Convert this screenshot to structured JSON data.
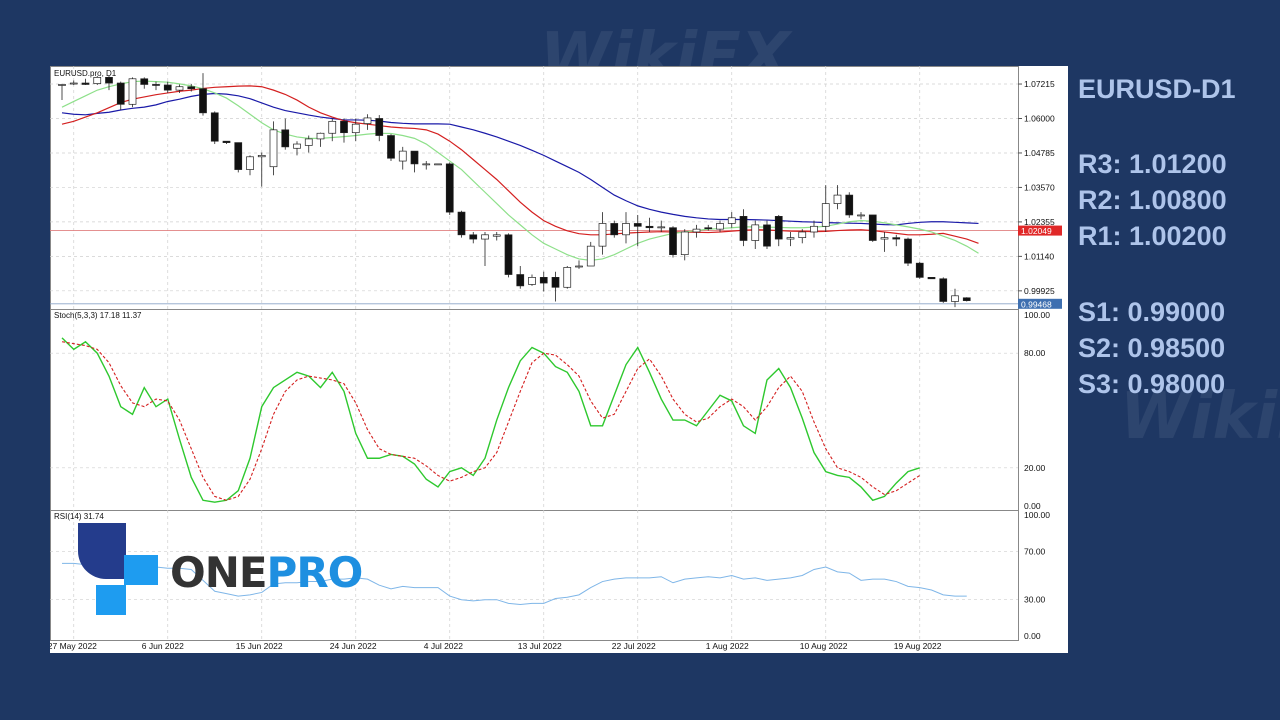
{
  "symbol_title": "EURUSD-D1",
  "levels": {
    "resistance": [
      "R3: 1.01200",
      "R2: 1.00800",
      "R1: 1.00200"
    ],
    "support": [
      "S1: 0.99000",
      "S2: 0.98500",
      "S3: 0.98000"
    ]
  },
  "logo": {
    "part1": "ONE",
    "part2": "PRO"
  },
  "watermark": "WikiFX",
  "chart_data": {
    "type": "candlestick",
    "symbol_label": "EURUSD.pro, D1",
    "price_ticks": [
      "1.07215",
      "1.06000",
      "1.04785",
      "1.03570",
      "1.02355",
      "1.01140",
      "0.99925"
    ],
    "price_range": [
      0.9932,
      1.0778
    ],
    "current_price_label": "1.02049",
    "current_price": 1.02049,
    "bid_price_label": "0.99468",
    "bid_price": 0.99468,
    "date_labels": [
      "27 May 2022",
      "6 Jun 2022",
      "15 Jun 2022",
      "24 Jun 2022",
      "4 Jul 2022",
      "13 Jul 2022",
      "22 Jul 2022",
      "1 Aug 2022",
      "10 Aug 2022",
      "19 Aug 2022"
    ],
    "date_label_index": [
      1,
      9,
      17,
      25,
      33,
      41,
      49,
      57,
      65,
      73
    ],
    "candles": [
      {
        "o": 1.0718,
        "h": 1.0722,
        "l": 1.0665,
        "c": 1.072
      },
      {
        "o": 1.0722,
        "h": 1.0734,
        "l": 1.0718,
        "c": 1.0725
      },
      {
        "o": 1.0725,
        "h": 1.074,
        "l": 1.0718,
        "c": 1.072
      },
      {
        "o": 1.0723,
        "h": 1.075,
        "l": 1.0718,
        "c": 1.0745
      },
      {
        "o": 1.0745,
        "h": 1.0752,
        "l": 1.07,
        "c": 1.0725
      },
      {
        "o": 1.0725,
        "h": 1.073,
        "l": 1.063,
        "c": 1.065
      },
      {
        "o": 1.065,
        "h": 1.0745,
        "l": 1.064,
        "c": 1.074
      },
      {
        "o": 1.074,
        "h": 1.0745,
        "l": 1.0705,
        "c": 1.072
      },
      {
        "o": 1.072,
        "h": 1.073,
        "l": 1.07,
        "c": 1.0718
      },
      {
        "o": 1.0718,
        "h": 1.073,
        "l": 1.069,
        "c": 1.07
      },
      {
        "o": 1.07,
        "h": 1.072,
        "l": 1.069,
        "c": 1.0712
      },
      {
        "o": 1.0712,
        "h": 1.0722,
        "l": 1.0695,
        "c": 1.0705
      },
      {
        "o": 1.0705,
        "h": 1.076,
        "l": 1.061,
        "c": 1.062
      },
      {
        "o": 1.062,
        "h": 1.0625,
        "l": 1.051,
        "c": 1.052
      },
      {
        "o": 1.052,
        "h": 1.052,
        "l": 1.051,
        "c": 1.0515
      },
      {
        "o": 1.0515,
        "h": 1.0515,
        "l": 1.041,
        "c": 1.042
      },
      {
        "o": 1.042,
        "h": 1.047,
        "l": 1.04,
        "c": 1.0465
      },
      {
        "o": 1.0465,
        "h": 1.048,
        "l": 1.036,
        "c": 1.047
      },
      {
        "o": 1.043,
        "h": 1.059,
        "l": 1.04,
        "c": 1.056
      },
      {
        "o": 1.056,
        "h": 1.06,
        "l": 1.049,
        "c": 1.05
      },
      {
        "o": 1.0495,
        "h": 1.052,
        "l": 1.047,
        "c": 1.051
      },
      {
        "o": 1.0505,
        "h": 1.054,
        "l": 1.048,
        "c": 1.0528
      },
      {
        "o": 1.0528,
        "h": 1.055,
        "l": 1.05,
        "c": 1.0548
      },
      {
        "o": 1.0548,
        "h": 1.06,
        "l": 1.052,
        "c": 1.059
      },
      {
        "o": 1.059,
        "h": 1.06,
        "l": 1.0515,
        "c": 1.055
      },
      {
        "o": 1.055,
        "h": 1.06,
        "l": 1.052,
        "c": 1.058
      },
      {
        "o": 1.0582,
        "h": 1.0615,
        "l": 1.056,
        "c": 1.0602
      },
      {
        "o": 1.06,
        "h": 1.0612,
        "l": 1.052,
        "c": 1.054
      },
      {
        "o": 1.054,
        "h": 1.0545,
        "l": 1.045,
        "c": 1.046
      },
      {
        "o": 1.045,
        "h": 1.05,
        "l": 1.042,
        "c": 1.0485
      },
      {
        "o": 1.0485,
        "h": 1.0485,
        "l": 1.041,
        "c": 1.044
      },
      {
        "o": 1.044,
        "h": 1.045,
        "l": 1.042,
        "c": 1.044
      },
      {
        "o": 1.044,
        "h": 1.0445,
        "l": 1.0445,
        "c": 1.044
      },
      {
        "o": 1.044,
        "h": 1.0445,
        "l": 1.026,
        "c": 1.027
      },
      {
        "o": 1.027,
        "h": 1.0275,
        "l": 1.018,
        "c": 1.019
      },
      {
        "o": 1.019,
        "h": 1.02,
        "l": 1.016,
        "c": 1.0175
      },
      {
        "o": 1.0175,
        "h": 1.02,
        "l": 1.008,
        "c": 1.019
      },
      {
        "o": 1.0185,
        "h": 1.02,
        "l": 1.017,
        "c": 1.019
      },
      {
        "o": 1.019,
        "h": 1.0195,
        "l": 1.004,
        "c": 1.005
      },
      {
        "o": 1.005,
        "h": 1.008,
        "l": 1.0,
        "c": 1.001
      },
      {
        "o": 1.0015,
        "h": 1.005,
        "l": 1.001,
        "c": 1.004
      },
      {
        "o": 1.004,
        "h": 1.006,
        "l": 0.999,
        "c": 1.002
      },
      {
        "o": 1.004,
        "h": 1.006,
        "l": 0.9955,
        "c": 1.0005
      },
      {
        "o": 1.0005,
        "h": 1.008,
        "l": 1.0,
        "c": 1.0075
      },
      {
        "o": 1.008,
        "h": 1.01,
        "l": 1.007,
        "c": 1.008
      },
      {
        "o": 1.008,
        "h": 1.0165,
        "l": 1.008,
        "c": 1.015
      },
      {
        "o": 1.015,
        "h": 1.027,
        "l": 1.012,
        "c": 1.023
      },
      {
        "o": 1.023,
        "h": 1.024,
        "l": 1.018,
        "c": 1.019
      },
      {
        "o": 1.019,
        "h": 1.027,
        "l": 1.016,
        "c": 1.023
      },
      {
        "o": 1.023,
        "h": 1.026,
        "l": 1.015,
        "c": 1.022
      },
      {
        "o": 1.022,
        "h": 1.025,
        "l": 1.02,
        "c": 1.0215
      },
      {
        "o": 1.0215,
        "h": 1.024,
        "l": 1.02,
        "c": 1.0218
      },
      {
        "o": 1.0215,
        "h": 1.022,
        "l": 1.011,
        "c": 1.012
      },
      {
        "o": 1.012,
        "h": 1.021,
        "l": 1.01,
        "c": 1.02
      },
      {
        "o": 1.02,
        "h": 1.0225,
        "l": 1.018,
        "c": 1.021
      },
      {
        "o": 1.0215,
        "h": 1.0225,
        "l": 1.0205,
        "c": 1.0212
      },
      {
        "o": 1.021,
        "h": 1.024,
        "l": 1.02,
        "c": 1.023
      },
      {
        "o": 1.023,
        "h": 1.027,
        "l": 1.0215,
        "c": 1.025
      },
      {
        "o": 1.0255,
        "h": 1.028,
        "l": 1.015,
        "c": 1.017
      },
      {
        "o": 1.017,
        "h": 1.024,
        "l": 1.014,
        "c": 1.0225
      },
      {
        "o": 1.0225,
        "h": 1.024,
        "l": 1.014,
        "c": 1.015
      },
      {
        "o": 1.0255,
        "h": 1.026,
        "l": 1.015,
        "c": 1.0175
      },
      {
        "o": 1.0175,
        "h": 1.02,
        "l": 1.015,
        "c": 1.018
      },
      {
        "o": 1.018,
        "h": 1.021,
        "l": 1.016,
        "c": 1.02
      },
      {
        "o": 1.02,
        "h": 1.024,
        "l": 1.018,
        "c": 1.022
      },
      {
        "o": 1.022,
        "h": 1.0365,
        "l": 1.02,
        "c": 1.03
      },
      {
        "o": 1.03,
        "h": 1.0365,
        "l": 1.028,
        "c": 1.033
      },
      {
        "o": 1.033,
        "h": 1.034,
        "l": 1.025,
        "c": 1.026
      },
      {
        "o": 1.026,
        "h": 1.027,
        "l": 1.0245,
        "c": 1.026
      },
      {
        "o": 1.026,
        "h": 1.026,
        "l": 1.0165,
        "c": 1.017
      },
      {
        "o": 1.0175,
        "h": 1.02,
        "l": 1.013,
        "c": 1.018
      },
      {
        "o": 1.018,
        "h": 1.019,
        "l": 1.015,
        "c": 1.0175
      },
      {
        "o": 1.0175,
        "h": 1.018,
        "l": 1.008,
        "c": 1.009
      },
      {
        "o": 1.009,
        "h": 1.0095,
        "l": 1.0035,
        "c": 1.004
      },
      {
        "o": 1.004,
        "h": 1.004,
        "l": 1.0035,
        "c": 1.0035
      },
      {
        "o": 1.0035,
        "h": 1.004,
        "l": 0.995,
        "c": 0.9955
      },
      {
        "o": 0.9955,
        "h": 1.0,
        "l": 0.9935,
        "c": 0.9975
      },
      {
        "o": 0.9968,
        "h": 0.997,
        "l": 0.9955,
        "c": 0.9958
      }
    ],
    "ma_series": [
      {
        "color": "#1a1aa8",
        "values": [
          1.062,
          1.0615,
          1.0613,
          1.0618,
          1.0622,
          1.063,
          1.0636,
          1.064,
          1.0648,
          1.066,
          1.0668,
          1.0678,
          1.0685,
          1.0688,
          1.0686,
          1.068,
          1.067,
          1.0655,
          1.064,
          1.0628,
          1.062,
          1.0612,
          1.0605,
          1.06,
          1.0595,
          1.0595,
          1.0594,
          1.0591,
          1.0586,
          1.0583,
          1.0581,
          1.0581,
          1.0581,
          1.058,
          1.057,
          1.056,
          1.0548,
          1.0535,
          1.052,
          1.0505,
          1.0488,
          1.047,
          1.045,
          1.043,
          1.041,
          1.0385,
          1.0357,
          1.033,
          1.031,
          1.0292,
          1.028,
          1.027,
          1.0262,
          1.0255,
          1.025,
          1.0246,
          1.0244,
          1.0244,
          1.0244,
          1.0243,
          1.0242,
          1.024,
          1.0238,
          1.0236,
          1.0235,
          1.0233,
          1.0232,
          1.0231,
          1.023,
          1.0228,
          1.0226,
          1.0225,
          1.023,
          1.0234,
          1.0236,
          1.0236,
          1.0234,
          1.0232,
          1.023
        ]
      },
      {
        "color": "#d42020",
        "values": [
          1.058,
          1.059,
          1.0605,
          1.062,
          1.0638,
          1.0656,
          1.0668,
          1.0676,
          1.0684,
          1.069,
          1.0696,
          1.07,
          1.0706,
          1.071,
          1.0712,
          1.0714,
          1.0715,
          1.0712,
          1.07,
          1.0685,
          1.0665,
          1.064,
          1.062,
          1.0605,
          1.0592,
          1.0585,
          1.058,
          1.0575,
          1.057,
          1.0567,
          1.0565,
          1.056,
          1.0545,
          1.052,
          1.049,
          1.0455,
          1.042,
          1.0385,
          1.0345,
          1.0305,
          1.027,
          1.024,
          1.022,
          1.0204,
          1.0194,
          1.019,
          1.019,
          1.0193,
          1.0196,
          1.0198,
          1.02,
          1.0201,
          1.02,
          1.02,
          1.0199,
          1.0198,
          1.02,
          1.0203,
          1.0206,
          1.0208,
          1.0207,
          1.0205,
          1.0203,
          1.0202,
          1.0201,
          1.0202,
          1.0205,
          1.0207,
          1.0208,
          1.0205,
          1.02,
          1.0195,
          1.019,
          1.019,
          1.0192,
          1.0195,
          1.0185,
          1.0175,
          1.016
        ]
      },
      {
        "color": "#8ee08a",
        "values": [
          1.064,
          1.066,
          1.068,
          1.07,
          1.0712,
          1.0722,
          1.073,
          1.0732,
          1.073,
          1.0728,
          1.0722,
          1.0715,
          1.0705,
          1.069,
          1.0672,
          1.0645,
          1.0615,
          1.0585,
          1.056,
          1.0545,
          1.0535,
          1.053,
          1.053,
          1.0533,
          1.0536,
          1.054,
          1.0545,
          1.0548,
          1.0547,
          1.054,
          1.053,
          1.051,
          1.048,
          1.045,
          1.042,
          1.038,
          1.034,
          1.03,
          1.026,
          1.0225,
          1.019,
          1.016,
          1.014,
          1.012,
          1.0105,
          1.01,
          1.0105,
          1.012,
          1.014,
          1.016,
          1.0175,
          1.0185,
          1.0195,
          1.02,
          1.0205,
          1.021,
          1.0212,
          1.0215,
          1.0218,
          1.0218,
          1.0217,
          1.0216,
          1.0215,
          1.0215,
          1.0217,
          1.022,
          1.0228,
          1.0236,
          1.024,
          1.0238,
          1.0232,
          1.0225,
          1.0218,
          1.021,
          1.02,
          1.0185,
          1.017,
          1.015,
          1.0125
        ]
      }
    ],
    "stoch": {
      "label": "Stoch(5,3,3) 17.18 11.37",
      "ticks": [
        "100.00",
        "80.00",
        "20.00",
        "0.00"
      ],
      "range": [
        0,
        100
      ],
      "main": [
        88,
        82,
        86,
        80,
        68,
        52,
        48,
        62,
        52,
        56,
        35,
        15,
        3,
        2,
        3,
        8,
        25,
        52,
        62,
        66,
        70,
        68,
        62,
        70,
        60,
        38,
        25,
        25,
        27,
        26,
        22,
        14,
        10,
        18,
        20,
        16,
        25,
        45,
        62,
        76,
        83,
        80,
        73,
        70,
        60,
        42,
        42,
        58,
        74,
        83,
        70,
        56,
        45,
        45,
        42,
        50,
        58,
        55,
        42,
        38,
        66,
        72,
        62,
        46,
        28,
        18,
        16,
        15,
        10,
        3,
        5,
        12,
        18,
        20
      ],
      "signal": [
        86,
        85,
        84,
        82,
        75,
        63,
        54,
        52,
        56,
        55,
        45,
        30,
        15,
        5,
        3,
        5,
        14,
        30,
        48,
        60,
        66,
        68,
        67,
        66,
        64,
        54,
        40,
        30,
        27,
        26,
        25,
        21,
        16,
        13,
        15,
        18,
        20,
        28,
        44,
        60,
        75,
        80,
        79,
        74,
        68,
        55,
        46,
        48,
        60,
        72,
        77,
        68,
        56,
        48,
        44,
        46,
        52,
        56,
        52,
        45,
        52,
        62,
        68,
        60,
        44,
        30,
        20,
        18,
        15,
        10,
        6,
        8,
        12,
        16
      ]
    },
    "rsi": {
      "label": "RSI(14) 31.74",
      "ticks": [
        "100.00",
        "70.00",
        "30.00",
        "0.00"
      ],
      "range": [
        0,
        100
      ],
      "values": [
        60,
        60,
        59,
        60,
        59,
        57,
        58,
        58,
        57,
        56,
        56,
        55,
        46,
        37,
        35,
        33,
        34,
        36,
        43,
        44,
        44,
        45,
        45,
        47,
        47,
        48,
        47,
        42,
        39,
        41,
        40,
        40,
        40,
        33,
        30,
        29,
        30,
        30,
        27,
        26,
        27,
        27,
        31,
        32,
        34,
        40,
        45,
        47,
        48,
        48,
        48,
        49,
        44,
        47,
        48,
        49,
        48,
        50,
        47,
        48,
        46,
        47,
        48,
        50,
        55,
        57,
        53,
        52,
        46,
        47,
        47,
        45,
        41,
        40,
        38,
        34,
        33,
        33
      ]
    }
  }
}
